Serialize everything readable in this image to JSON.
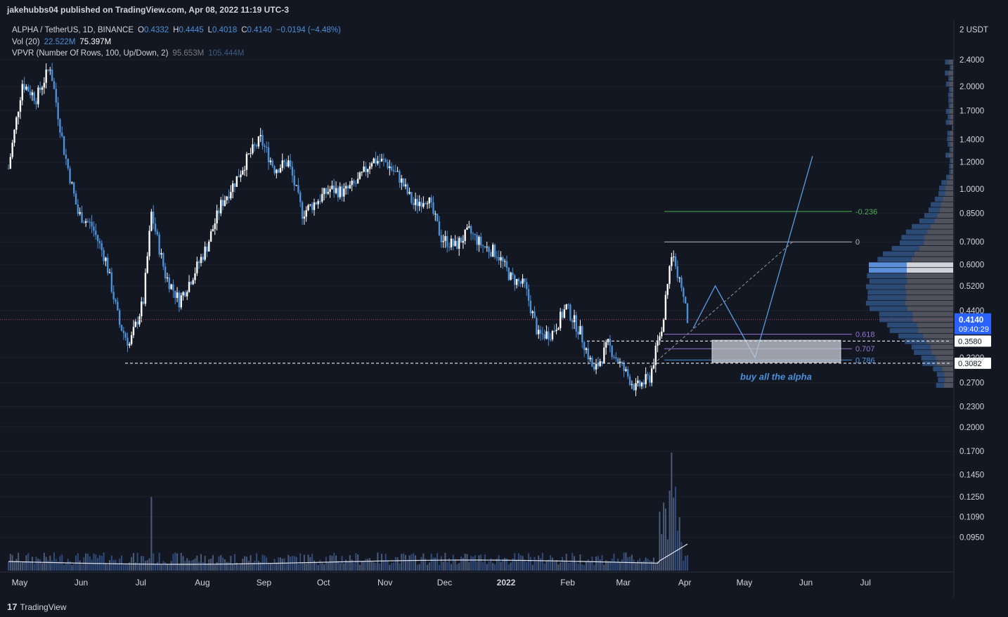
{
  "header": {
    "publish_line": "jakehubbs04 published on TradingView.com, Apr 08, 2022 11:19 UTC-3"
  },
  "footer": {
    "brand": "TradingView",
    "logo_glyph": "17"
  },
  "legend": {
    "symbol": "ALPHA / TetherUS, 1D, BINANCE",
    "open_label": "O",
    "open": "0.4332",
    "high_label": "H",
    "high": "0.4445",
    "low_label": "L",
    "low": "0.4018",
    "close_label": "C",
    "close": "0.4140",
    "change": "−0.0194 (−4.48%)",
    "vol_label": "Vol (20)",
    "vol_ma": "22.522M",
    "vol_value": "75.397M",
    "vpvr_label": "VPVR (Number Of Rows, 100, Up/Down, 2)",
    "vpvr_up": "95.653M",
    "vpvr_total": "105.444M"
  },
  "colors": {
    "background": "#131722",
    "up": "#ffffff",
    "down": "#4a90d9",
    "fib_green": "#4caf50",
    "fib_purple": "#9575cd",
    "fib_blue": "#4a90d9",
    "note": "#4a90d9",
    "price_badge": "#2962ff"
  },
  "chart_data": {
    "type": "candlestick",
    "ylabel_unit": "2 USDT",
    "y_scale": "log",
    "ylim": [
      0.085,
      2.6
    ],
    "y_ticks": [
      "2.4000",
      "2.0000",
      "1.7000",
      "1.4000",
      "1.2000",
      "1.0000",
      "0.8500",
      "0.7000",
      "0.6000",
      "0.5200",
      "0.4400",
      "0.3200",
      "0.2700",
      "0.2300",
      "0.2000",
      "0.1700",
      "0.1450",
      "0.1250",
      "0.1090",
      "0.0950"
    ],
    "x_ticks": [
      "May",
      "Jun",
      "Jul",
      "Aug",
      "Sep",
      "Oct",
      "Nov",
      "Dec",
      "2022",
      "Feb",
      "Mar",
      "Apr",
      "May",
      "Jun",
      "Jul"
    ],
    "price_path": [
      {
        "date": "2021-05-01",
        "price": 1.15
      },
      {
        "date": "2021-05-08",
        "price": 2.05
      },
      {
        "date": "2021-05-15",
        "price": 1.85
      },
      {
        "date": "2021-05-22",
        "price": 2.3
      },
      {
        "date": "2021-05-29",
        "price": 1.3
      },
      {
        "date": "2021-06-05",
        "price": 0.85
      },
      {
        "date": "2021-06-12",
        "price": 0.78
      },
      {
        "date": "2021-06-19",
        "price": 0.62
      },
      {
        "date": "2021-06-26",
        "price": 0.4
      },
      {
        "date": "2021-07-01",
        "price": 0.35
      },
      {
        "date": "2021-07-08",
        "price": 0.47
      },
      {
        "date": "2021-07-12",
        "price": 0.85
      },
      {
        "date": "2021-07-19",
        "price": 0.56
      },
      {
        "date": "2021-07-26",
        "price": 0.47
      },
      {
        "date": "2021-08-02",
        "price": 0.56
      },
      {
        "date": "2021-08-09",
        "price": 0.68
      },
      {
        "date": "2021-08-16",
        "price": 0.9
      },
      {
        "date": "2021-08-23",
        "price": 1.05
      },
      {
        "date": "2021-08-30",
        "price": 1.25
      },
      {
        "date": "2021-09-05",
        "price": 1.4
      },
      {
        "date": "2021-09-12",
        "price": 1.15
      },
      {
        "date": "2021-09-19",
        "price": 1.2
      },
      {
        "date": "2021-09-26",
        "price": 0.85
      },
      {
        "date": "2021-10-03",
        "price": 0.92
      },
      {
        "date": "2021-10-10",
        "price": 1.0
      },
      {
        "date": "2021-10-17",
        "price": 0.98
      },
      {
        "date": "2021-10-24",
        "price": 1.05
      },
      {
        "date": "2021-10-31",
        "price": 1.22
      },
      {
        "date": "2021-11-07",
        "price": 1.2
      },
      {
        "date": "2021-11-14",
        "price": 1.08
      },
      {
        "date": "2021-11-21",
        "price": 0.9
      },
      {
        "date": "2021-11-28",
        "price": 0.95
      },
      {
        "date": "2021-12-05",
        "price": 0.72
      },
      {
        "date": "2021-12-12",
        "price": 0.68
      },
      {
        "date": "2021-12-19",
        "price": 0.75
      },
      {
        "date": "2021-12-26",
        "price": 0.68
      },
      {
        "date": "2022-01-02",
        "price": 0.65
      },
      {
        "date": "2022-01-09",
        "price": 0.55
      },
      {
        "date": "2022-01-16",
        "price": 0.52
      },
      {
        "date": "2022-01-23",
        "price": 0.37
      },
      {
        "date": "2022-01-30",
        "price": 0.38
      },
      {
        "date": "2022-02-06",
        "price": 0.45
      },
      {
        "date": "2022-02-13",
        "price": 0.38
      },
      {
        "date": "2022-02-20",
        "price": 0.29
      },
      {
        "date": "2022-02-27",
        "price": 0.35
      },
      {
        "date": "2022-03-06",
        "price": 0.3
      },
      {
        "date": "2022-03-13",
        "price": 0.26
      },
      {
        "date": "2022-03-20",
        "price": 0.28
      },
      {
        "date": "2022-03-27",
        "price": 0.42
      },
      {
        "date": "2022-03-31",
        "price": 0.65
      },
      {
        "date": "2022-04-04",
        "price": 0.55
      },
      {
        "date": "2022-04-08",
        "price": 0.414
      }
    ],
    "projection_path": [
      {
        "date": "2022-04-08",
        "price": 0.39
      },
      {
        "date": "2022-04-22",
        "price": 0.52
      },
      {
        "date": "2022-05-12",
        "price": 0.32
      },
      {
        "date": "2022-06-10",
        "price": 1.25
      }
    ],
    "fib_levels": [
      {
        "label": "-0.236",
        "price": 0.86
      },
      {
        "label": "0",
        "price": 0.7
      },
      {
        "label": "0.618",
        "price": 0.375
      },
      {
        "label": "0.707",
        "price": 0.34
      },
      {
        "label": "0.786",
        "price": 0.315
      }
    ],
    "support_levels": [
      {
        "price": "0.3580",
        "value": 0.358
      },
      {
        "price": "0.3082",
        "value": 0.3082
      }
    ],
    "current_price": {
      "price": "0.4140",
      "value": 0.414,
      "countdown": "09:40:29"
    },
    "annotation": "buy all the alpha"
  }
}
